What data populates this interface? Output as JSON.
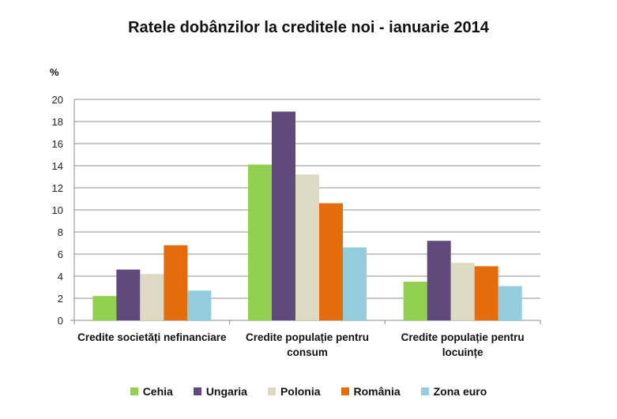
{
  "chart_data": {
    "type": "bar",
    "title": "Ratele dobânzilor la creditele noi - ianuarie 2014",
    "ylabel": "%",
    "xlabel": "",
    "ylim": [
      0,
      20
    ],
    "yticks": [
      0,
      2,
      4,
      6,
      8,
      10,
      12,
      14,
      16,
      18,
      20
    ],
    "grid": true,
    "legend_position": "bottom",
    "categories": [
      [
        "Credite societăți nefinanciare"
      ],
      [
        "Credite populație pentru",
        "consum"
      ],
      [
        "Credite populație pentru",
        "locuințe"
      ]
    ],
    "series": [
      {
        "name": "Cehia",
        "color": "#92d050",
        "values": [
          2.2,
          14.1,
          3.5
        ]
      },
      {
        "name": "Ungaria",
        "color": "#604a7b",
        "values": [
          4.6,
          18.9,
          7.2
        ]
      },
      {
        "name": "Polonia",
        "color": "#ddd9c3",
        "values": [
          4.2,
          13.2,
          5.2
        ]
      },
      {
        "name": "România",
        "color": "#e46c0a",
        "values": [
          6.8,
          10.6,
          4.9
        ]
      },
      {
        "name": "Zona euro",
        "color": "#93cddd",
        "values": [
          2.7,
          6.6,
          3.1
        ]
      }
    ]
  }
}
